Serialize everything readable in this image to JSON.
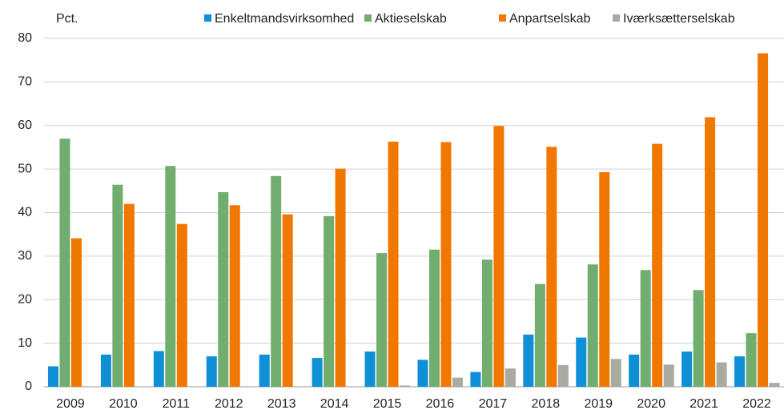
{
  "chart_data": {
    "type": "bar",
    "y_axis_label": "Pct.",
    "categories": [
      "2009",
      "2010",
      "2011",
      "2012",
      "2013",
      "2014",
      "2015",
      "2016",
      "2017",
      "2018",
      "2019",
      "2020",
      "2021",
      "2022"
    ],
    "series": [
      {
        "name": "Enkeltmandsvirksomhed",
        "color": "#0f8fd6",
        "values": [
          4.7,
          7.4,
          8.2,
          7.0,
          7.4,
          6.6,
          8.1,
          6.2,
          3.4,
          12.0,
          11.3,
          7.4,
          8.1,
          7.0
        ]
      },
      {
        "name": "Aktieselskab",
        "color": "#70ad6f",
        "values": [
          57.0,
          46.4,
          50.7,
          44.7,
          48.4,
          39.2,
          30.7,
          31.5,
          29.2,
          23.6,
          28.1,
          26.8,
          22.2,
          12.3
        ]
      },
      {
        "name": "Anpartselskab",
        "color": "#f07800",
        "values": [
          34.1,
          42.0,
          37.4,
          41.7,
          39.6,
          50.1,
          56.3,
          56.2,
          59.9,
          55.1,
          49.3,
          55.8,
          61.9,
          76.6
        ]
      },
      {
        "name": "Iværksætterselskab",
        "color": "#a9aba0",
        "values": [
          null,
          null,
          null,
          null,
          null,
          null,
          0.3,
          2.1,
          4.2,
          5.0,
          6.4,
          5.1,
          5.6,
          0.9
        ]
      }
    ],
    "ylim": [
      0,
      80
    ],
    "yticks": [
      0,
      10,
      20,
      30,
      40,
      50,
      60,
      70,
      80
    ],
    "grid": true
  }
}
